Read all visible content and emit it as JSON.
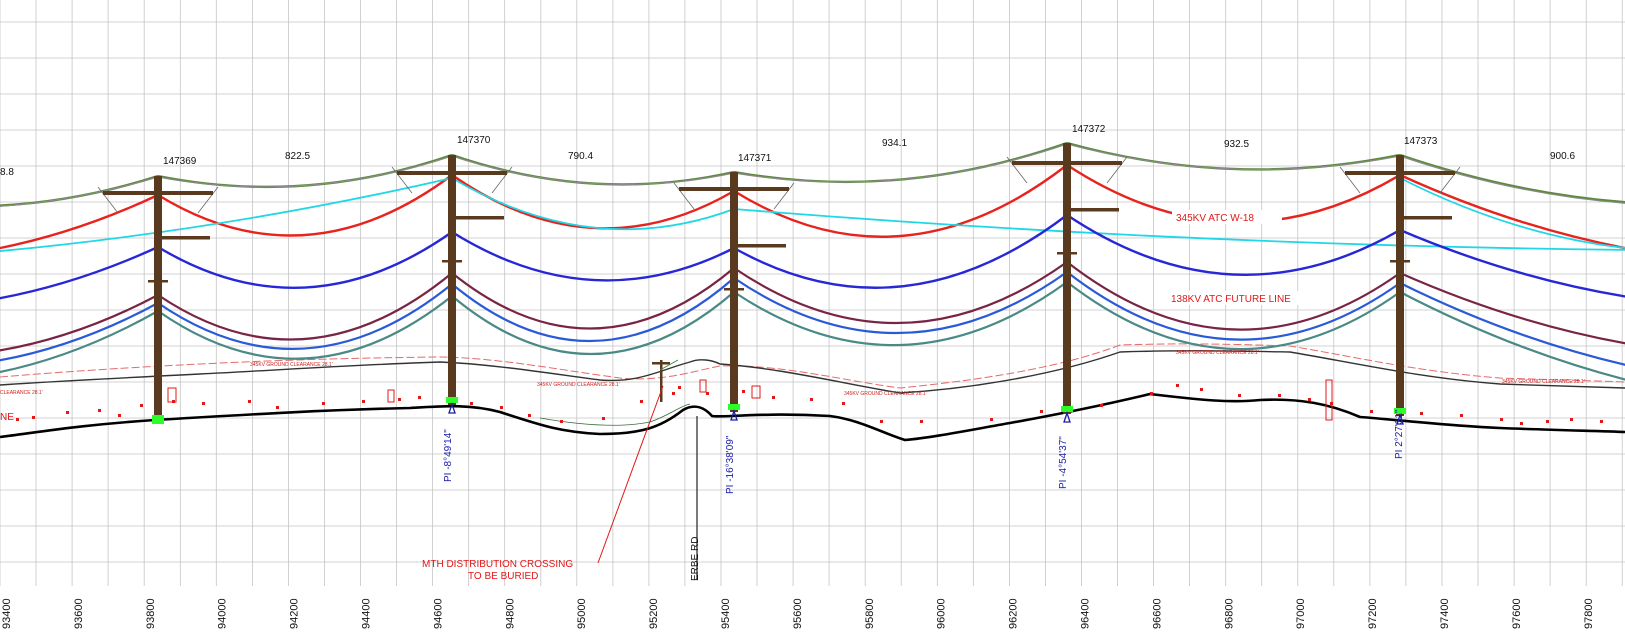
{
  "x_ticks": [
    "93400",
    "93600",
    "93800",
    "94000",
    "94200",
    "94400",
    "94600",
    "94800",
    "95000",
    "95200",
    "95400",
    "95600",
    "95800",
    "96000",
    "96200",
    "96400",
    "96600",
    "96800",
    "97000",
    "97200",
    "97400",
    "97600",
    "97800"
  ],
  "structures": [
    {
      "id": "147369",
      "pi": null
    },
    {
      "id": "147370",
      "pi": "PI -8°49'14\""
    },
    {
      "id": "147371",
      "pi": "PI -16°38'09\""
    },
    {
      "id": "147372",
      "pi": "PI -4°54'37\""
    },
    {
      "id": "147373",
      "pi": "PI 2°27'31\""
    }
  ],
  "span_lengths": [
    "8.8",
    "822.5",
    "790.4",
    "934.1",
    "932.5",
    "900.6"
  ],
  "circuits": [
    {
      "label": "345KV ATC W-18",
      "color": "#e8231d"
    },
    {
      "label": "138KV ATC FUTURE LINE",
      "color": "#e8231d"
    }
  ],
  "ground_clearance_note": "345KV GROUND CLEARANCE 28.1'",
  "left_fragments": [
    "NE",
    "CLEARANCE 28.1'"
  ],
  "crossing_note": [
    "MTH DISTRIBUTION CROSSING",
    "TO BE BURIED"
  ],
  "road_label": "ERBE RD",
  "colors": {
    "grid": "#c4c4c4",
    "shield_wire": "#5c8a3c",
    "phase_345": "#e8231d",
    "phase_345_alt": "#1fd7e6",
    "phase_138": "#2727d6",
    "dist_1": "#7a2445",
    "dist_2": "#2a5ad8",
    "dist_3": "#4a8a86",
    "pole": "#5a3a1e",
    "ground": "#000000"
  }
}
